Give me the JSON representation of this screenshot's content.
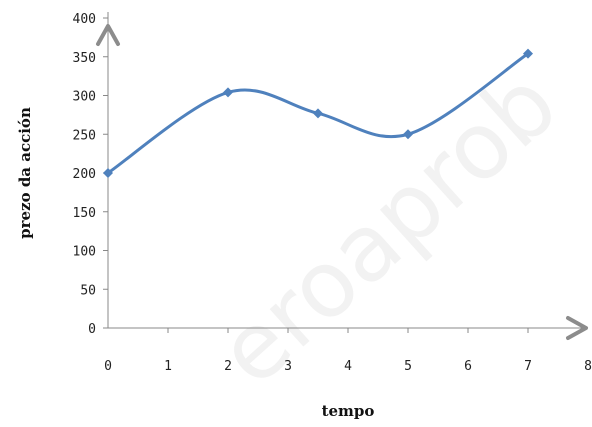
{
  "watermark": "eroaprob",
  "chart_data": {
    "type": "line",
    "xlabel": "tempo",
    "ylabel": "prezo da acción",
    "xlim": [
      0,
      8
    ],
    "ylim": [
      0,
      400
    ],
    "x_ticks": [
      "0",
      "1",
      "2",
      "3",
      "4",
      "5",
      "6",
      "7",
      "8"
    ],
    "y_ticks": [
      "0",
      "50",
      "100",
      "150",
      "200",
      "250",
      "300",
      "350",
      "400"
    ],
    "grid": false,
    "smooth": true,
    "colors": {
      "series": "#4f81bd",
      "axis": "#888888",
      "arrow": "#8c8c8c"
    },
    "series": [
      {
        "x": [
          0,
          2,
          3.5,
          5,
          7
        ],
        "y": [
          200,
          304,
          277,
          250,
          354
        ]
      }
    ]
  }
}
